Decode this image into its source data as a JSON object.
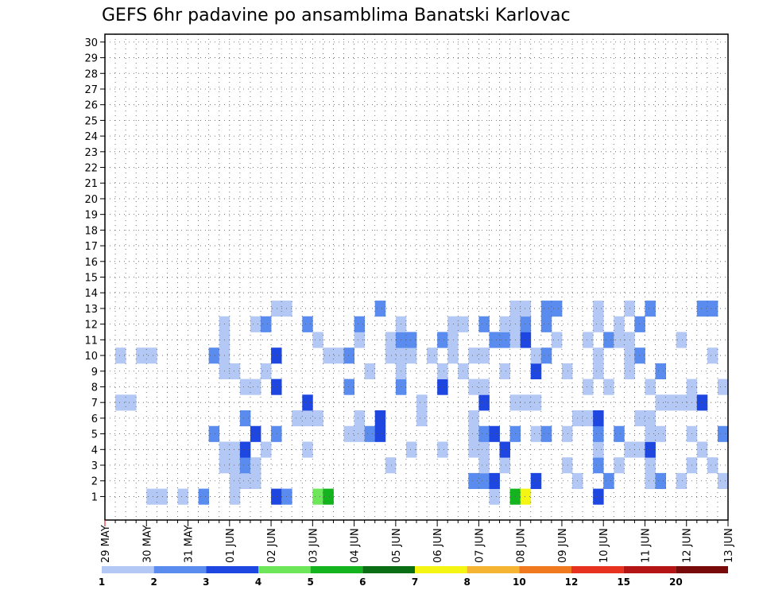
{
  "chart_data": {
    "type": "heatmap",
    "title": "GEFS 6hr padavine po ansamblima Banatski Karlovac",
    "y_ticks": [
      "1",
      "2",
      "3",
      "4",
      "5",
      "6",
      "7",
      "8",
      "9",
      "10",
      "11",
      "12",
      "13",
      "14",
      "15",
      "16",
      "17",
      "18",
      "19",
      "20",
      "21",
      "22",
      "23",
      "24",
      "25",
      "26",
      "27",
      "28",
      "29",
      "30"
    ],
    "x_ticks": [
      "29 MAY",
      "30 MAY",
      "31 MAY",
      "01 JUN",
      "02 JUN",
      "03 JUN",
      "04 JUN",
      "05 JUN",
      "06 JUN",
      "07 JUN",
      "08 JUN",
      "09 JUN",
      "10 JUN",
      "11 JUN",
      "12 JUN",
      "13 JUN"
    ],
    "time_steps": 60,
    "members": 30,
    "grid": true,
    "legend_placement": "bottom",
    "legend": {
      "labels": [
        "1",
        "2",
        "3",
        "4",
        "5",
        "6",
        "7",
        "8",
        "10",
        "12",
        "15",
        "20"
      ],
      "colors": [
        "#b4c8f5",
        "#5a8cf0",
        "#1e46e1",
        "#6ee65a",
        "#14b41e",
        "#0a6e14",
        "#f5f514",
        "#f5b432",
        "#f0781e",
        "#e6321e",
        "#b41414",
        "#780a0a"
      ]
    },
    "cell_value_note": "",
    "cells": [
      [
        1,
        4,
        1
      ],
      [
        1,
        5,
        1
      ],
      [
        1,
        7,
        1
      ],
      [
        1,
        9,
        2
      ],
      [
        1,
        12,
        1
      ],
      [
        1,
        16,
        3
      ],
      [
        1,
        17,
        2
      ],
      [
        1,
        20,
        4
      ],
      [
        1,
        21,
        5
      ],
      [
        1,
        37,
        1
      ],
      [
        1,
        39,
        5
      ],
      [
        1,
        40,
        7
      ],
      [
        1,
        47,
        3
      ],
      [
        2,
        12,
        1
      ],
      [
        2,
        13,
        1
      ],
      [
        2,
        14,
        1
      ],
      [
        2,
        35,
        2
      ],
      [
        2,
        36,
        2
      ],
      [
        2,
        37,
        3
      ],
      [
        2,
        41,
        3
      ],
      [
        2,
        45,
        1
      ],
      [
        2,
        48,
        2
      ],
      [
        2,
        52,
        1
      ],
      [
        2,
        53,
        2
      ],
      [
        2,
        55,
        1
      ],
      [
        2,
        59,
        1
      ],
      [
        3,
        11,
        1
      ],
      [
        3,
        12,
        1
      ],
      [
        3,
        13,
        2
      ],
      [
        3,
        14,
        1
      ],
      [
        3,
        27,
        1
      ],
      [
        3,
        36,
        1
      ],
      [
        3,
        38,
        1
      ],
      [
        3,
        44,
        1
      ],
      [
        3,
        47,
        2
      ],
      [
        3,
        49,
        1
      ],
      [
        3,
        52,
        1
      ],
      [
        3,
        56,
        1
      ],
      [
        3,
        58,
        1
      ],
      [
        4,
        11,
        1
      ],
      [
        4,
        12,
        1
      ],
      [
        4,
        13,
        3
      ],
      [
        4,
        15,
        1
      ],
      [
        4,
        19,
        1
      ],
      [
        4,
        29,
        1
      ],
      [
        4,
        32,
        1
      ],
      [
        4,
        35,
        1
      ],
      [
        4,
        36,
        1
      ],
      [
        4,
        38,
        3
      ],
      [
        4,
        47,
        1
      ],
      [
        4,
        50,
        1
      ],
      [
        4,
        51,
        1
      ],
      [
        4,
        52,
        3
      ],
      [
        4,
        57,
        1
      ],
      [
        5,
        10,
        2
      ],
      [
        5,
        14,
        3
      ],
      [
        5,
        16,
        2
      ],
      [
        5,
        23,
        1
      ],
      [
        5,
        24,
        1
      ],
      [
        5,
        25,
        2
      ],
      [
        5,
        26,
        3
      ],
      [
        5,
        35,
        1
      ],
      [
        5,
        36,
        2
      ],
      [
        5,
        37,
        3
      ],
      [
        5,
        39,
        2
      ],
      [
        5,
        41,
        1
      ],
      [
        5,
        42,
        2
      ],
      [
        5,
        44,
        1
      ],
      [
        5,
        47,
        2
      ],
      [
        5,
        49,
        2
      ],
      [
        5,
        52,
        1
      ],
      [
        5,
        53,
        1
      ],
      [
        5,
        56,
        1
      ],
      [
        5,
        59,
        2
      ],
      [
        6,
        13,
        2
      ],
      [
        6,
        18,
        1
      ],
      [
        6,
        19,
        1
      ],
      [
        6,
        20,
        1
      ],
      [
        6,
        24,
        1
      ],
      [
        6,
        26,
        3
      ],
      [
        6,
        30,
        1
      ],
      [
        6,
        35,
        1
      ],
      [
        6,
        45,
        1
      ],
      [
        6,
        46,
        1
      ],
      [
        6,
        47,
        3
      ],
      [
        6,
        51,
        1
      ],
      [
        6,
        52,
        1
      ],
      [
        7,
        1,
        1
      ],
      [
        7,
        2,
        1
      ],
      [
        7,
        19,
        3
      ],
      [
        7,
        30,
        1
      ],
      [
        7,
        36,
        3
      ],
      [
        7,
        39,
        1
      ],
      [
        7,
        40,
        1
      ],
      [
        7,
        41,
        1
      ],
      [
        7,
        53,
        1
      ],
      [
        7,
        54,
        1
      ],
      [
        7,
        55,
        1
      ],
      [
        7,
        56,
        1
      ],
      [
        7,
        57,
        3
      ],
      [
        8,
        13,
        1
      ],
      [
        8,
        14,
        1
      ],
      [
        8,
        16,
        3
      ],
      [
        8,
        23,
        2
      ],
      [
        8,
        28,
        2
      ],
      [
        8,
        32,
        3
      ],
      [
        8,
        35,
        1
      ],
      [
        8,
        36,
        1
      ],
      [
        8,
        46,
        1
      ],
      [
        8,
        48,
        1
      ],
      [
        8,
        52,
        1
      ],
      [
        8,
        56,
        1
      ],
      [
        8,
        59,
        1
      ],
      [
        9,
        11,
        1
      ],
      [
        9,
        12,
        1
      ],
      [
        9,
        15,
        1
      ],
      [
        9,
        25,
        1
      ],
      [
        9,
        28,
        1
      ],
      [
        9,
        32,
        1
      ],
      [
        9,
        34,
        1
      ],
      [
        9,
        38,
        1
      ],
      [
        9,
        41,
        3
      ],
      [
        9,
        44,
        1
      ],
      [
        9,
        47,
        1
      ],
      [
        9,
        50,
        1
      ],
      [
        9,
        53,
        2
      ],
      [
        10,
        1,
        1
      ],
      [
        10,
        3,
        1
      ],
      [
        10,
        4,
        1
      ],
      [
        10,
        10,
        2
      ],
      [
        10,
        11,
        1
      ],
      [
        10,
        16,
        3
      ],
      [
        10,
        21,
        1
      ],
      [
        10,
        22,
        1
      ],
      [
        10,
        23,
        2
      ],
      [
        10,
        27,
        1
      ],
      [
        10,
        28,
        1
      ],
      [
        10,
        29,
        1
      ],
      [
        10,
        31,
        1
      ],
      [
        10,
        33,
        1
      ],
      [
        10,
        35,
        1
      ],
      [
        10,
        36,
        1
      ],
      [
        10,
        41,
        1
      ],
      [
        10,
        42,
        2
      ],
      [
        10,
        47,
        1
      ],
      [
        10,
        50,
        1
      ],
      [
        10,
        51,
        2
      ],
      [
        10,
        58,
        1
      ],
      [
        11,
        11,
        1
      ],
      [
        11,
        20,
        1
      ],
      [
        11,
        24,
        1
      ],
      [
        11,
        27,
        1
      ],
      [
        11,
        28,
        2
      ],
      [
        11,
        29,
        2
      ],
      [
        11,
        32,
        2
      ],
      [
        11,
        33,
        1
      ],
      [
        11,
        37,
        2
      ],
      [
        11,
        38,
        2
      ],
      [
        11,
        39,
        1
      ],
      [
        11,
        40,
        3
      ],
      [
        11,
        43,
        1
      ],
      [
        11,
        46,
        1
      ],
      [
        11,
        48,
        2
      ],
      [
        11,
        49,
        1
      ],
      [
        11,
        50,
        1
      ],
      [
        11,
        55,
        1
      ],
      [
        12,
        11,
        1
      ],
      [
        12,
        14,
        1
      ],
      [
        12,
        15,
        2
      ],
      [
        12,
        19,
        2
      ],
      [
        12,
        24,
        2
      ],
      [
        12,
        28,
        1
      ],
      [
        12,
        33,
        1
      ],
      [
        12,
        34,
        1
      ],
      [
        12,
        36,
        2
      ],
      [
        12,
        38,
        1
      ],
      [
        12,
        39,
        1
      ],
      [
        12,
        40,
        2
      ],
      [
        12,
        42,
        2
      ],
      [
        12,
        47,
        1
      ],
      [
        12,
        49,
        1
      ],
      [
        12,
        51,
        2
      ],
      [
        13,
        16,
        1
      ],
      [
        13,
        17,
        1
      ],
      [
        13,
        26,
        2
      ],
      [
        13,
        39,
        1
      ],
      [
        13,
        40,
        1
      ],
      [
        13,
        42,
        2
      ],
      [
        13,
        43,
        2
      ],
      [
        13,
        47,
        1
      ],
      [
        13,
        50,
        1
      ],
      [
        13,
        52,
        2
      ],
      [
        13,
        57,
        2
      ],
      [
        13,
        58,
        2
      ]
    ]
  }
}
